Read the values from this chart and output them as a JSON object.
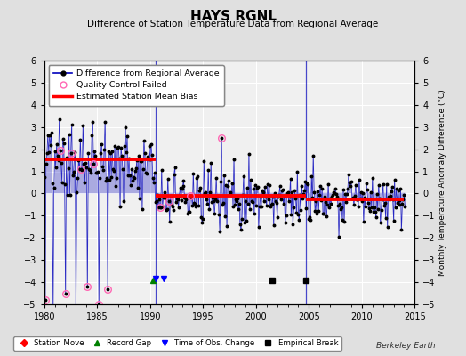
{
  "title": "HAYS RGNL",
  "subtitle": "Difference of Station Temperature Data from Regional Average",
  "ylabel_right": "Monthly Temperature Anomaly Difference (°C)",
  "xlim": [
    1980,
    2015
  ],
  "ylim": [
    -5,
    6
  ],
  "yticks": [
    -5,
    -4,
    -3,
    -2,
    -1,
    0,
    1,
    2,
    3,
    4,
    5,
    6
  ],
  "xticks": [
    1980,
    1985,
    1990,
    1995,
    2000,
    2005,
    2010,
    2015
  ],
  "background_color": "#e0e0e0",
  "plot_bg_color": "#f0f0f0",
  "line_color": "#0000bb",
  "bias_color": "#ff0000",
  "qc_color": "#ff69b4",
  "grid_color": "#ffffff",
  "watermark": "Berkeley Earth",
  "segment1_bias": 1.55,
  "segment1_start": 1980.0,
  "segment1_end": 1990.5,
  "segment2_bias": -0.12,
  "segment2_start": 1990.5,
  "segment2_end": 2004.7,
  "segment3_bias": -0.25,
  "segment3_start": 2004.7,
  "segment3_end": 2014.0,
  "vline1_x": 1990.5,
  "vline2_x": 2004.7,
  "record_gap_x": 1990.3,
  "record_gap_y": -3.9,
  "empirical_break_x1": 2001.5,
  "empirical_break_x2": 2004.7,
  "empirical_break_y": -3.9,
  "time_obs_x1": 1990.55,
  "time_obs_x2": 1991.3,
  "time_obs_y": -3.85
}
